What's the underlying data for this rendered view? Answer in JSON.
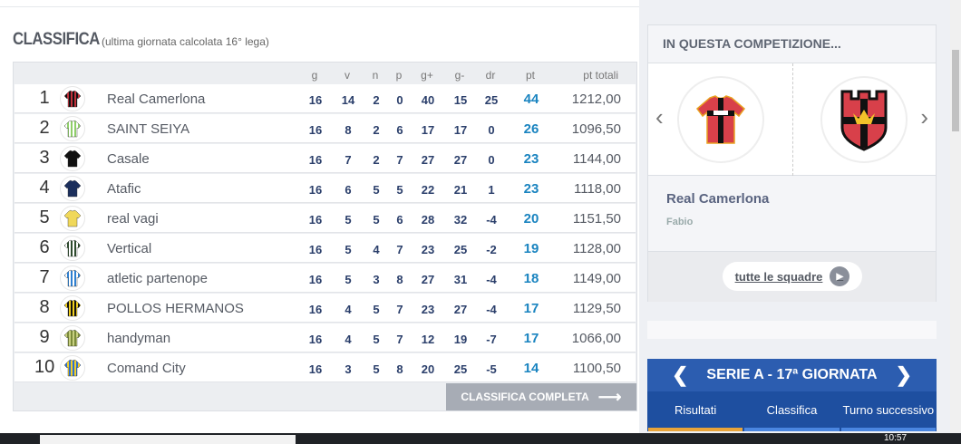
{
  "classifica": {
    "title": "CLASSIFICA",
    "subtitle": "(ultima giornata calcolata 16° lega)",
    "columns": [
      "g",
      "v",
      "n",
      "p",
      "g+",
      "g-",
      "dr",
      "pt",
      "pt totali"
    ],
    "rows": [
      {
        "rank": "1",
        "team": "Real Camerlona",
        "g": "16",
        "v": "14",
        "n": "2",
        "p": "0",
        "gf": "40",
        "gs": "15",
        "dr": "25",
        "pt": "44",
        "tot": "1212,00",
        "c1": "#c0303a",
        "c2": "#111"
      },
      {
        "rank": "2",
        "team": "SAINT SEIYA",
        "g": "16",
        "v": "8",
        "n": "2",
        "p": "6",
        "gf": "17",
        "gs": "17",
        "dr": "0",
        "pt": "26",
        "tot": "1096,50",
        "c1": "#8fce6a",
        "c2": "#fff"
      },
      {
        "rank": "3",
        "team": "Casale",
        "g": "16",
        "v": "7",
        "n": "2",
        "p": "7",
        "gf": "27",
        "gs": "27",
        "dr": "0",
        "pt": "23",
        "tot": "1144,00",
        "c1": "#111",
        "c2": "#111"
      },
      {
        "rank": "4",
        "team": "Atafic",
        "g": "16",
        "v": "6",
        "n": "5",
        "p": "5",
        "gf": "22",
        "gs": "21",
        "dr": "1",
        "pt": "23",
        "tot": "1118,00",
        "c1": "#1c2f5c",
        "c2": "#1c2f5c"
      },
      {
        "rank": "5",
        "team": "real vagi",
        "g": "16",
        "v": "5",
        "n": "5",
        "p": "6",
        "gf": "28",
        "gs": "32",
        "dr": "-4",
        "pt": "20",
        "tot": "1151,50",
        "c1": "#f0d85a",
        "c2": "#f0d85a"
      },
      {
        "rank": "6",
        "team": "Vertical",
        "g": "16",
        "v": "5",
        "n": "4",
        "p": "7",
        "gf": "23",
        "gs": "25",
        "dr": "-2",
        "pt": "19",
        "tot": "1128,00",
        "c1": "#2d4a2d",
        "c2": "#fff"
      },
      {
        "rank": "7",
        "team": "atletic partenope",
        "g": "16",
        "v": "5",
        "n": "3",
        "p": "8",
        "gf": "27",
        "gs": "31",
        "dr": "-4",
        "pt": "18",
        "tot": "1149,00",
        "c1": "#2e7fd0",
        "c2": "#fff"
      },
      {
        "rank": "8",
        "team": "POLLOS HERMANOS",
        "g": "16",
        "v": "4",
        "n": "5",
        "p": "7",
        "gf": "23",
        "gs": "27",
        "dr": "-4",
        "pt": "17",
        "tot": "1129,50",
        "c1": "#111",
        "c2": "#f2d020"
      },
      {
        "rank": "9",
        "team": "handyman",
        "g": "16",
        "v": "4",
        "n": "5",
        "p": "7",
        "gf": "12",
        "gs": "19",
        "dr": "-7",
        "pt": "17",
        "tot": "1066,00",
        "c1": "#7a8a3a",
        "c2": "#c8d080"
      },
      {
        "rank": "10",
        "team": "Comand City",
        "g": "16",
        "v": "3",
        "n": "5",
        "p": "8",
        "gf": "20",
        "gs": "25",
        "dr": "-5",
        "pt": "14",
        "tot": "1100,50",
        "c1": "#f2cf2a",
        "c2": "#2e6fd0"
      }
    ],
    "full_button": "CLASSIFICA COMPLETA",
    "full_arrow": "⟶"
  },
  "competition": {
    "title": "IN QUESTA COMPETIZIONE...",
    "team": "Real Camerlona",
    "owner": "Fabio",
    "all_teams": "tutte le squadre",
    "prev": "‹",
    "next": "›"
  },
  "serie": {
    "title": "SERIE A - 17ª GIORNATA",
    "prev": "❮",
    "next": "❯",
    "tabs": [
      "Risultati",
      "Classifica",
      "Turno successivo"
    ]
  },
  "taskbar": {
    "time": "10:57"
  }
}
